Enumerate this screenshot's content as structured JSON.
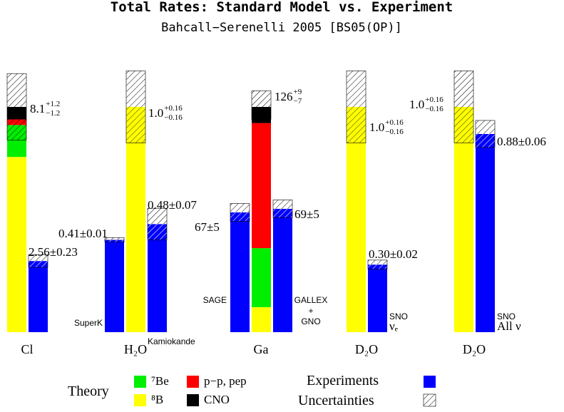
{
  "chart_data": {
    "type": "grouped-stack",
    "title": "Total Rates: Standard Model vs. Experiment",
    "subtitle": "Bahcall−Serenelli 2005 [BS05(OP)]",
    "components": [
      {
        "name": "⁸B",
        "color": "#ffff00"
      },
      {
        "name": "⁷Be",
        "color": "#00ee00"
      },
      {
        "name": "p−p, pep",
        "color": "#ff0000"
      },
      {
        "name": "CNO",
        "color": "#000000"
      }
    ],
    "experiment_color": "#0000ff",
    "legend": {
      "theory": "Theory",
      "experiments": "Experiments",
      "uncertainties": "Uncertainties"
    },
    "groups": [
      {
        "label": "Cl",
        "theory": {
          "segments": [
            6.3,
            1.15,
            0.2,
            0.45
          ],
          "value": 8.1,
          "plus": 1.2,
          "minus": 1.2,
          "value_label": "8.1",
          "plus_label": "+1.2",
          "minus_label": "−1.2"
        },
        "experiments": [
          {
            "value": 2.56,
            "error": 0.23,
            "value_label": "2.56±0.23"
          }
        ]
      },
      {
        "label": "H₂O",
        "theory": {
          "segments": [
            1.0,
            null,
            null,
            null
          ],
          "value": 1.0,
          "plus": 0.16,
          "minus": 0.16,
          "value_label": "1.0",
          "plus_label": "+0.16",
          "minus_label": "−0.16"
        },
        "experiments": [
          {
            "name": [
              "SuperK"
            ],
            "value": 0.41,
            "error": 0.01,
            "value_label": "0.41±0.01"
          },
          {
            "name": [
              "Kamiokande"
            ],
            "value": 0.48,
            "error": 0.07,
            "value_label": "0.48±0.07"
          }
        ]
      },
      {
        "label": "Ga",
        "theory": {
          "segments": [
            14,
            33,
            70,
            9
          ],
          "value": 126,
          "plus": 9,
          "minus": 7,
          "value_label": "126",
          "plus_label": "+9",
          "minus_label": "−7"
        },
        "experiments": [
          {
            "name": [
              "SAGE"
            ],
            "value": 67,
            "error": 5,
            "value_label": "67±5"
          },
          {
            "name": [
              "GALLEX",
              "+",
              "GNO"
            ],
            "value": 69,
            "error": 5,
            "value_label": "69±5"
          }
        ]
      },
      {
        "label": "D₂O",
        "theory": {
          "segments": [
            1.0,
            null,
            null,
            null
          ],
          "value": 1.0,
          "plus": 0.16,
          "minus": 0.16,
          "value_label": "1.0",
          "plus_label": "+0.16",
          "minus_label": "−0.16"
        },
        "experiments": [
          {
            "name": [
              "SNO",
              "νₑ"
            ],
            "value": 0.3,
            "error": 0.02,
            "value_label": "0.30±0.02"
          }
        ]
      },
      {
        "label": "D₂O",
        "theory": {
          "segments": [
            1.0,
            null,
            null,
            null
          ],
          "value": 1.0,
          "plus": 0.16,
          "minus": 0.16,
          "value_label": "1.0",
          "plus_label": "+0.16",
          "minus_label": "−0.16"
        },
        "experiments": [
          {
            "name": [
              "SNO",
              "All ν"
            ],
            "value": 0.88,
            "error": 0.06,
            "value_label": "0.88±0.06"
          }
        ]
      }
    ]
  }
}
